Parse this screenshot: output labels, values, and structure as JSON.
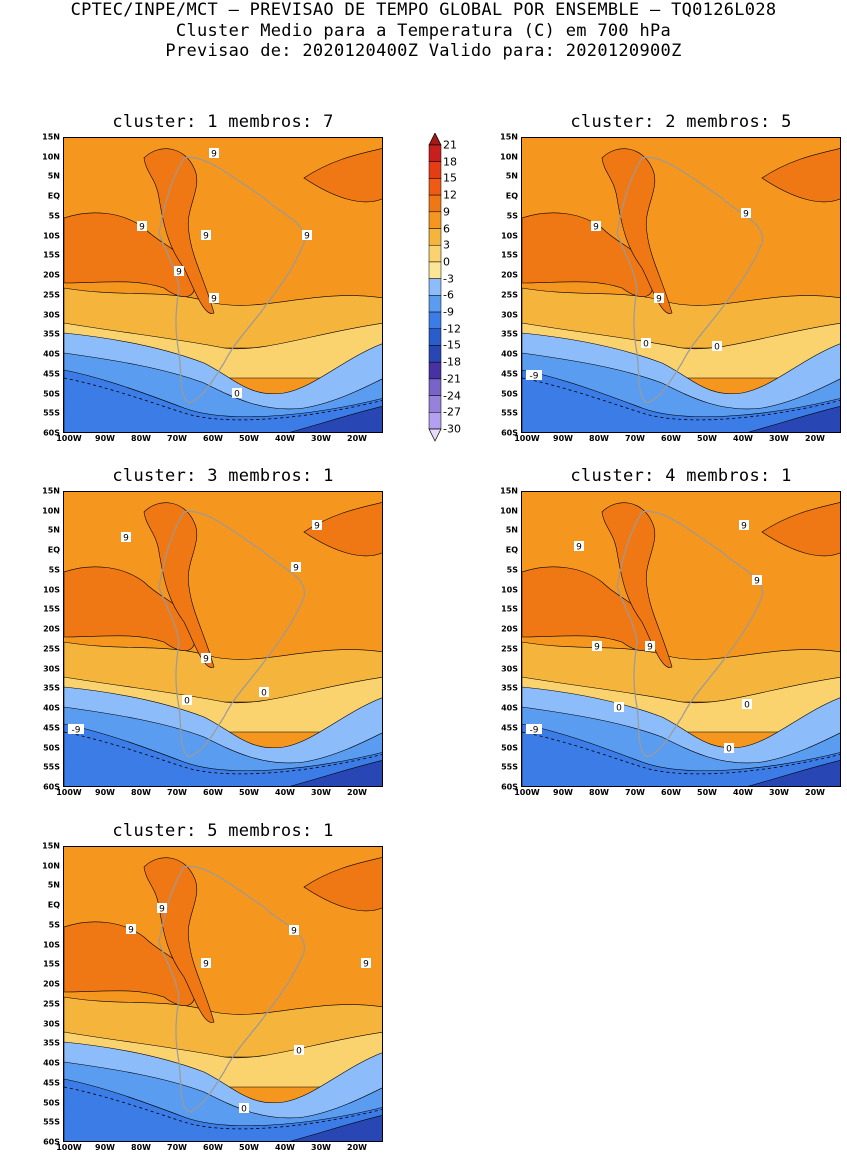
{
  "header": {
    "line1": "CPTEC/INPE/MCT – PREVISAO DE TEMPO GLOBAL POR ENSEMBLE – TQ0126L028",
    "line2": "Cluster Medio para a Temperatura (C) em 700 hPa",
    "line3": "Previsao de: 2020120400Z    Valido para: 2020120900Z"
  },
  "axes": {
    "lat_labels": [
      "15N",
      "10N",
      "5N",
      "EQ",
      "5S",
      "10S",
      "15S",
      "20S",
      "25S",
      "30S",
      "35S",
      "40S",
      "45S",
      "50S",
      "55S",
      "60S"
    ],
    "lon_labels": [
      "100W",
      "90W",
      "80W",
      "70W",
      "60W",
      "50W",
      "40W",
      "30W",
      "20W"
    ]
  },
  "colorbar": {
    "levels": [
      "21",
      "18",
      "15",
      "12",
      "9",
      "6",
      "3",
      "0",
      "-3",
      "-6",
      "-9",
      "-12",
      "-15",
      "-18",
      "-21",
      "-24",
      "-27",
      "-30"
    ],
    "colors": [
      "#a01a1a",
      "#c81e1e",
      "#e63c14",
      "#f05a14",
      "#f07814",
      "#f5961e",
      "#f5b43c",
      "#fad26e",
      "#fae696",
      "#8cbcfa",
      "#5a9cf0",
      "#3c7ce6",
      "#2a5ccc",
      "#2846b4",
      "#4632a0",
      "#7864c8",
      "#9682dc",
      "#b4a0f0",
      "#e6dcfa"
    ]
  },
  "panels": [
    {
      "title": "cluster: 1   membros: 7",
      "labels": [
        "9",
        "9",
        "9",
        "9",
        "9",
        "9",
        "0"
      ]
    },
    {
      "title": "cluster: 2   membros: 5",
      "labels": [
        "9",
        "9",
        "9",
        "0",
        "0",
        "-9"
      ]
    },
    {
      "title": "cluster: 3   membros: 1",
      "labels": [
        "9",
        "9",
        "9",
        "9",
        "0",
        "0",
        "-9"
      ]
    },
    {
      "title": "cluster: 4   membros: 1",
      "labels": [
        "9",
        "9",
        "9",
        "9",
        "9",
        "0",
        "0",
        "0",
        "-9"
      ]
    },
    {
      "title": "cluster: 5   membros: 1",
      "labels": [
        "9",
        "9",
        "9",
        "9",
        "9",
        "0",
        "0"
      ]
    }
  ]
}
